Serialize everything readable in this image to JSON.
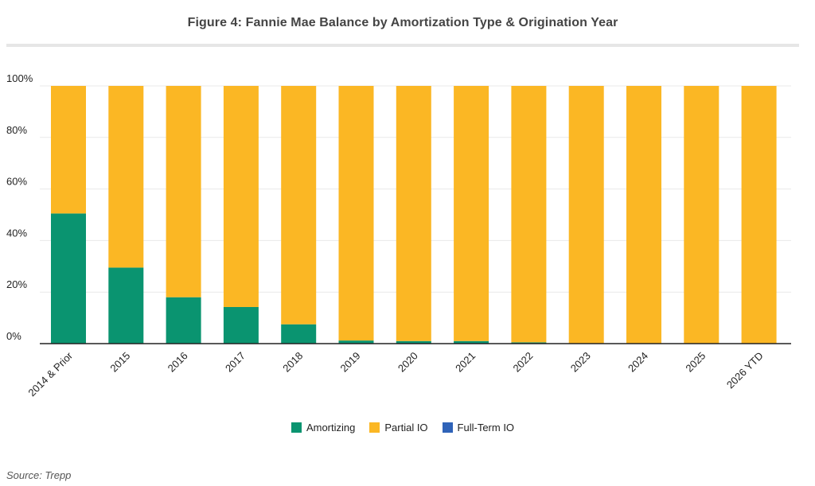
{
  "title": "Figure 4: Fannie Mae Balance by Amortization Type & Origination Year",
  "source": "Source: Trepp",
  "colors": {
    "amortizing": "#0a9470",
    "partial_io": "#fbb724",
    "full_term_io": "#2f63b8",
    "grid": "#e9e9e9",
    "axis": "#222222"
  },
  "chart_data": {
    "type": "bar",
    "stacked": true,
    "categories": [
      "2014 & Prior",
      "2015",
      "2016",
      "2017",
      "2018",
      "2019",
      "2020",
      "2021",
      "2022",
      "2023",
      "2024",
      "2025",
      "2026 YTD"
    ],
    "series": [
      {
        "name": "Amortizing",
        "values": [
          50.5,
          29.5,
          18,
          14.2,
          7.5,
          1.2,
          1,
          1,
          0.5,
          0,
          0,
          0,
          0
        ]
      },
      {
        "name": "Partial IO",
        "values": [
          49.5,
          70.5,
          82,
          85.8,
          92.5,
          98.8,
          99,
          99,
          99.5,
          100,
          100,
          100,
          100
        ]
      },
      {
        "name": "Full-Term IO",
        "values": [
          0,
          0,
          0,
          0,
          0,
          0,
          0,
          0,
          0,
          0,
          0,
          0,
          0
        ]
      }
    ],
    "y_ticks": [
      "0%",
      "20%",
      "40%",
      "60%",
      "80%",
      "100%"
    ],
    "ylim": [
      0,
      100
    ],
    "grid": true,
    "legend_position": "bottom"
  }
}
